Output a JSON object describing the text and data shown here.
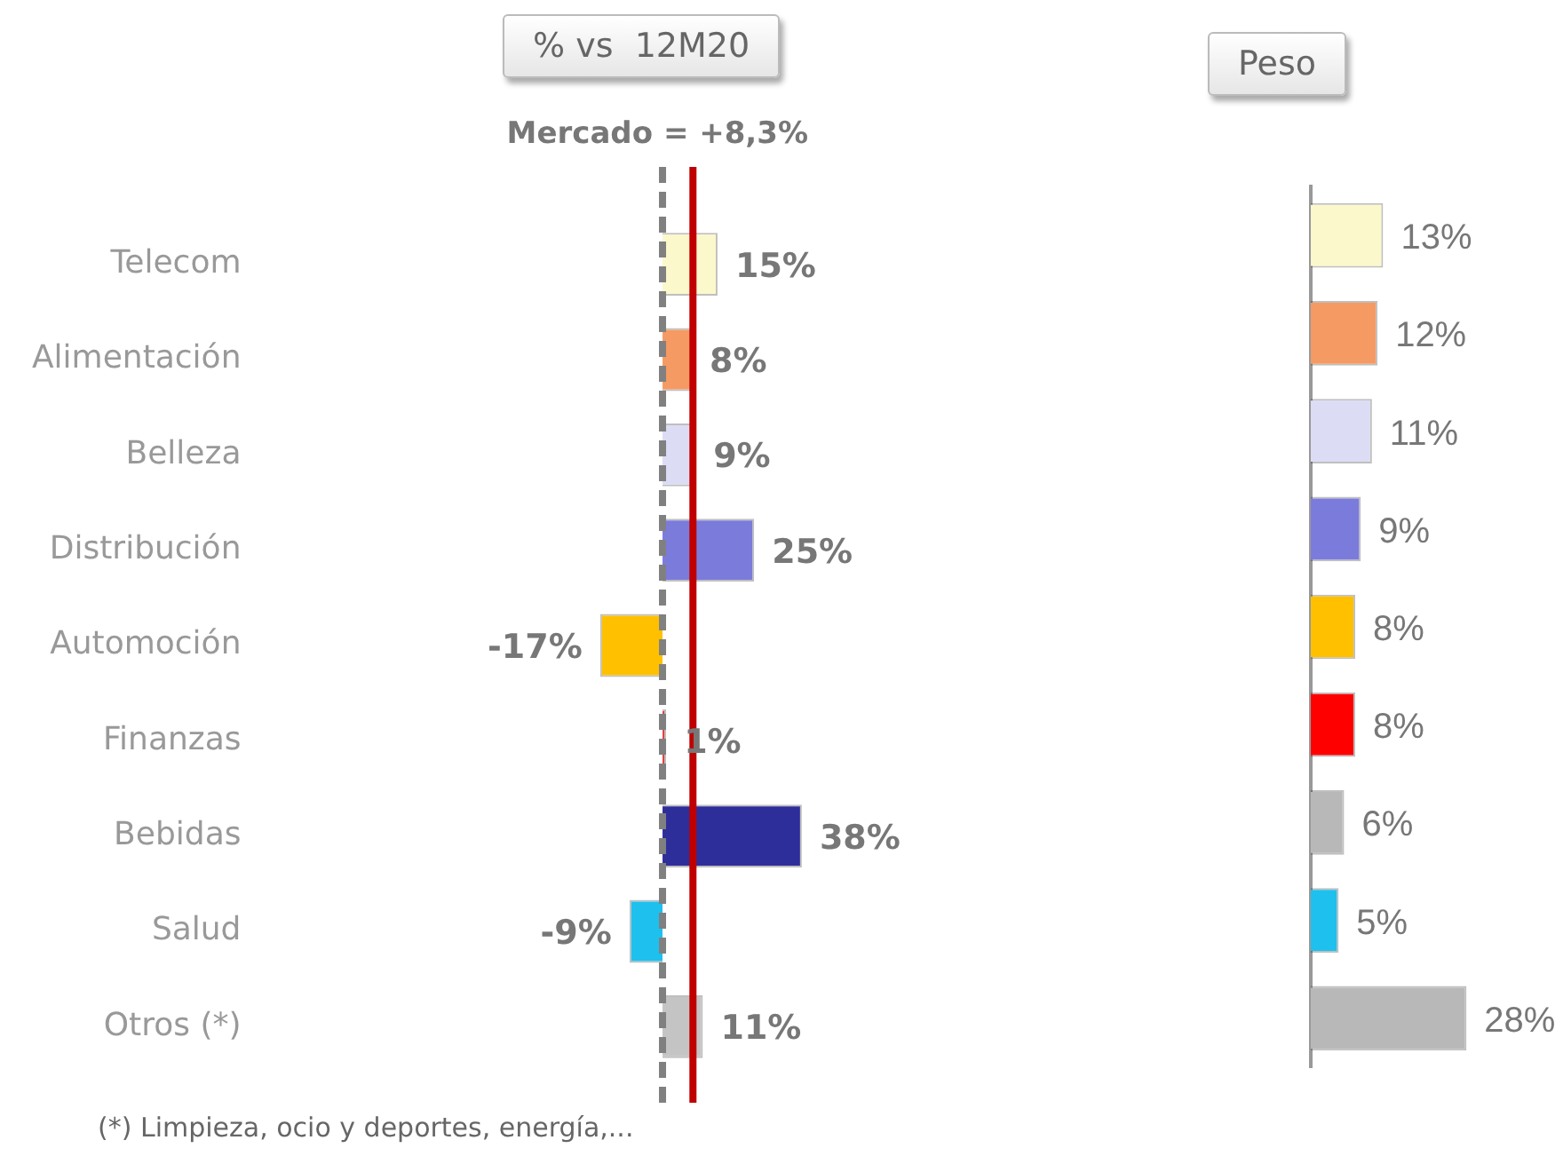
{
  "chart_data": [
    {
      "type": "bar",
      "orientation": "horizontal",
      "title": "% vs  12M20",
      "categories": [
        "Telecom",
        "Alimentación",
        "Belleza",
        "Distribución",
        "Automoción",
        "Finanzas",
        "Bebidas",
        "Salud",
        "Otros (*)"
      ],
      "values": [
        15,
        8,
        9,
        25,
        -17,
        1,
        38,
        -9,
        11
      ],
      "colors": [
        "#fbf8cc",
        "#f59a63",
        "#dcdcf5",
        "#7b7bdc",
        "#ffc000",
        "#e04040",
        "#2e2e9a",
        "#1ec0ee",
        "#c4c4c4"
      ],
      "value_labels": [
        "15%",
        "8%",
        "9%",
        "25%",
        "-17%",
        "1%",
        "38%",
        "-9%",
        "11%"
      ],
      "grid": false,
      "legend": false,
      "tick_labels": "y",
      "ref_lines": [
        {
          "axis": "x",
          "value": 0,
          "label": null,
          "color": "#808080",
          "line_style": "dashed"
        },
        {
          "axis": "x",
          "value": 8.3,
          "label": "Mercado = +8,3%",
          "color": "#c00000",
          "line_style": "solid"
        }
      ],
      "annotations": [
        "(*) Limpieza, ocio y deportes, energía,..."
      ]
    },
    {
      "type": "bar",
      "orientation": "horizontal",
      "title": "Peso",
      "categories": [
        null,
        null,
        null,
        null,
        null,
        null,
        null,
        null,
        null
      ],
      "values": [
        13,
        12,
        11,
        9,
        8,
        8,
        6,
        5,
        28
      ],
      "colors": [
        "#fbf8cc",
        "#f59a63",
        "#dcdcf5",
        "#7b7bdc",
        "#ffc000",
        "#ff0000",
        "#b8b8b8",
        "#1ec0ee",
        "#b8b8b8"
      ],
      "value_labels": [
        "13%",
        "12%",
        "11%",
        "9%",
        "8%",
        "8%",
        "6%",
        "5%",
        "28%"
      ],
      "grid": false,
      "legend": false,
      "tick_labels": false
    }
  ]
}
